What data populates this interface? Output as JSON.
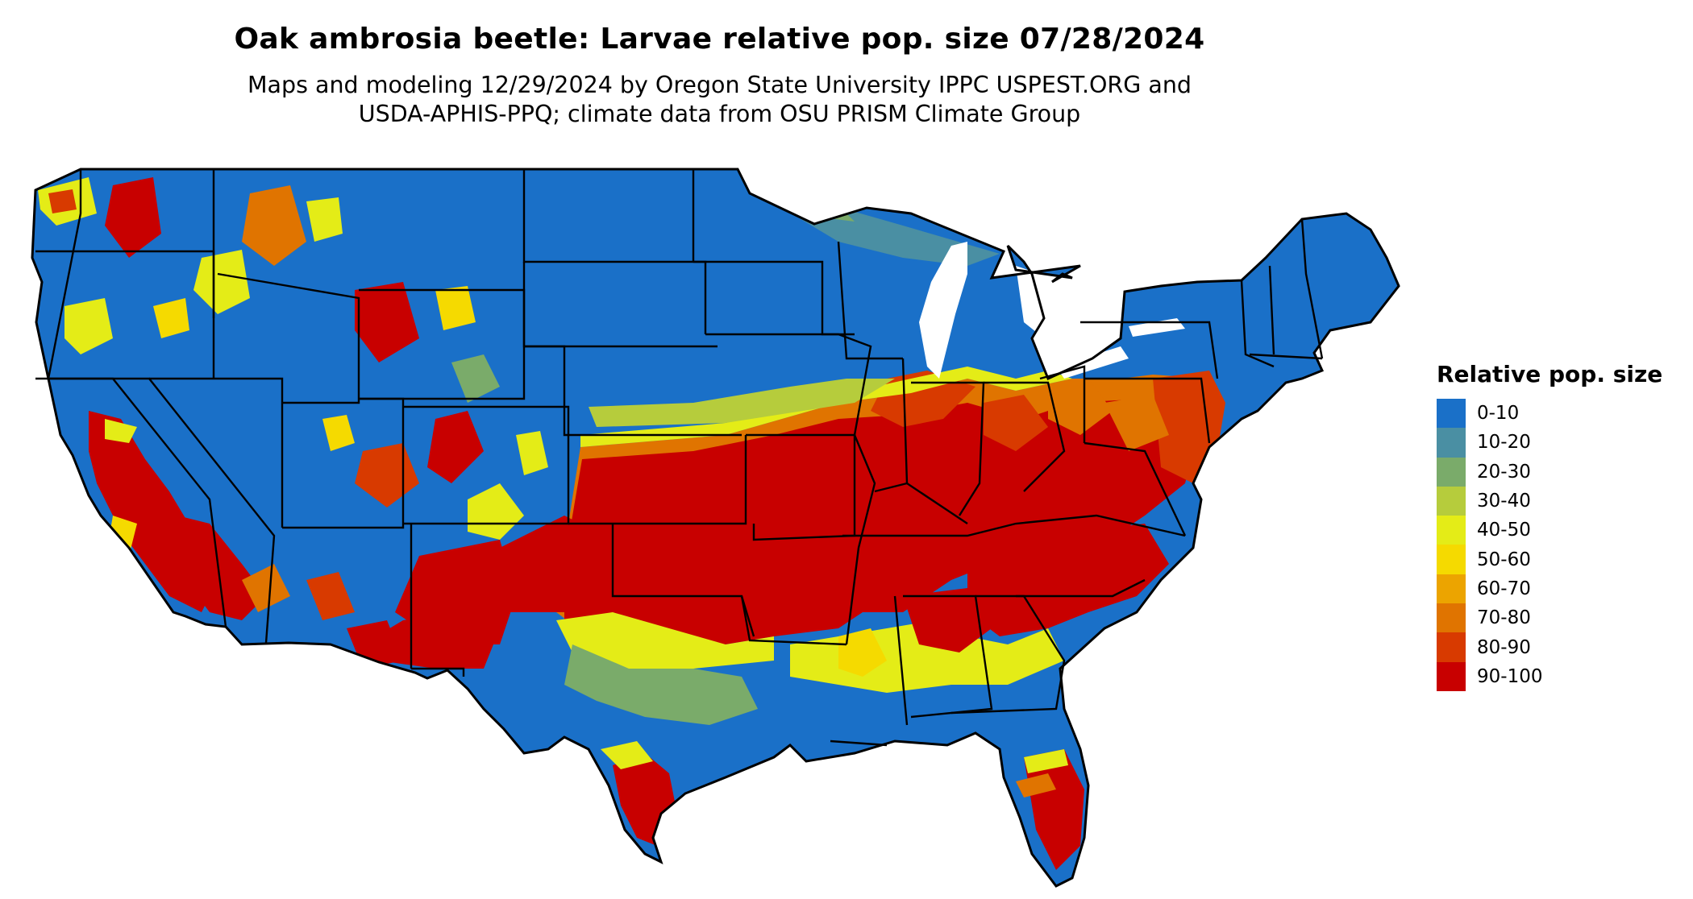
{
  "title": "Oak ambrosia beetle: Larvae relative pop. size 07/28/2024",
  "subtitle_line1": "Maps and modeling 12/29/2024 by Oregon State University IPPC USPEST.ORG and",
  "subtitle_line2": "USDA-APHIS-PPQ; climate data from OSU PRISM Climate Group",
  "legend": {
    "title": "Relative pop. size",
    "items": [
      {
        "label": "0-10",
        "color": "#1a70c8"
      },
      {
        "label": "10-20",
        "color": "#4a8fa3"
      },
      {
        "label": "20-30",
        "color": "#7aab6a"
      },
      {
        "label": "30-40",
        "color": "#b6cc3c"
      },
      {
        "label": "40-50",
        "color": "#e4ec17"
      },
      {
        "label": "50-60",
        "color": "#f5da00"
      },
      {
        "label": "60-70",
        "color": "#eca400"
      },
      {
        "label": "70-80",
        "color": "#e07400"
      },
      {
        "label": "80-90",
        "color": "#d83a00"
      },
      {
        "label": "90-100",
        "color": "#c80000"
      }
    ]
  },
  "map": {
    "region": "Contiguous United States",
    "background_color": "#1a70c8",
    "border_color": "#000000"
  }
}
